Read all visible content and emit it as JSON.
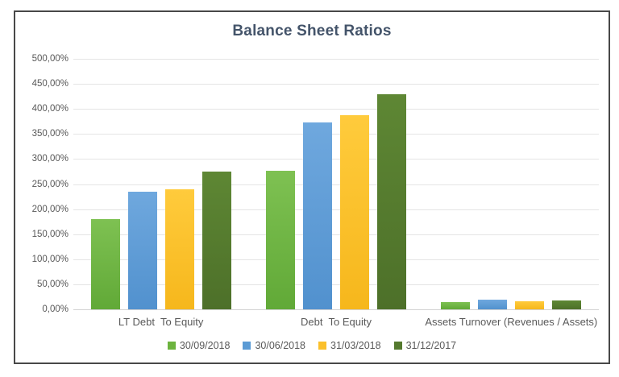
{
  "chart_data": {
    "type": "bar",
    "title": "Balance Sheet Ratios",
    "categories": [
      "LT Debt  To Equity",
      "Debt  To Equity",
      "Assets Turnover (Revenues / Assets)"
    ],
    "series": [
      {
        "name": "30/09/2018",
        "color": "#6CB33E",
        "color_light": "#7EC152",
        "color_dark": "#61A937",
        "values": [
          180,
          277,
          15
        ]
      },
      {
        "name": "30/06/2018",
        "color": "#5B9BD5",
        "color_light": "#6FA8DE",
        "color_dark": "#5191CE",
        "values": [
          234,
          373,
          19
        ]
      },
      {
        "name": "31/03/2018",
        "color": "#FBC02B",
        "color_light": "#FFCB3C",
        "color_dark": "#F6B71C",
        "values": [
          239,
          388,
          16
        ]
      },
      {
        "name": "31/12/2017",
        "color": "#54792E",
        "color_light": "#5E8734",
        "color_dark": "#4D7029",
        "values": [
          275,
          430,
          18
        ]
      }
    ],
    "y_axis": {
      "min": 0,
      "max": 500,
      "step": 50,
      "tick_labels": [
        "0,00%",
        "50,00%",
        "100,00%",
        "150,00%",
        "200,00%",
        "250,00%",
        "300,00%",
        "350,00%",
        "400,00%",
        "450,00%",
        "500,00%"
      ]
    },
    "grid": true,
    "legend_position": "bottom",
    "colors": {
      "title_text": "#44546A",
      "axis_text": "#595959",
      "gridline": "#E4E4E4",
      "frame_border": "#484848",
      "background": "#FFFFFF"
    }
  }
}
